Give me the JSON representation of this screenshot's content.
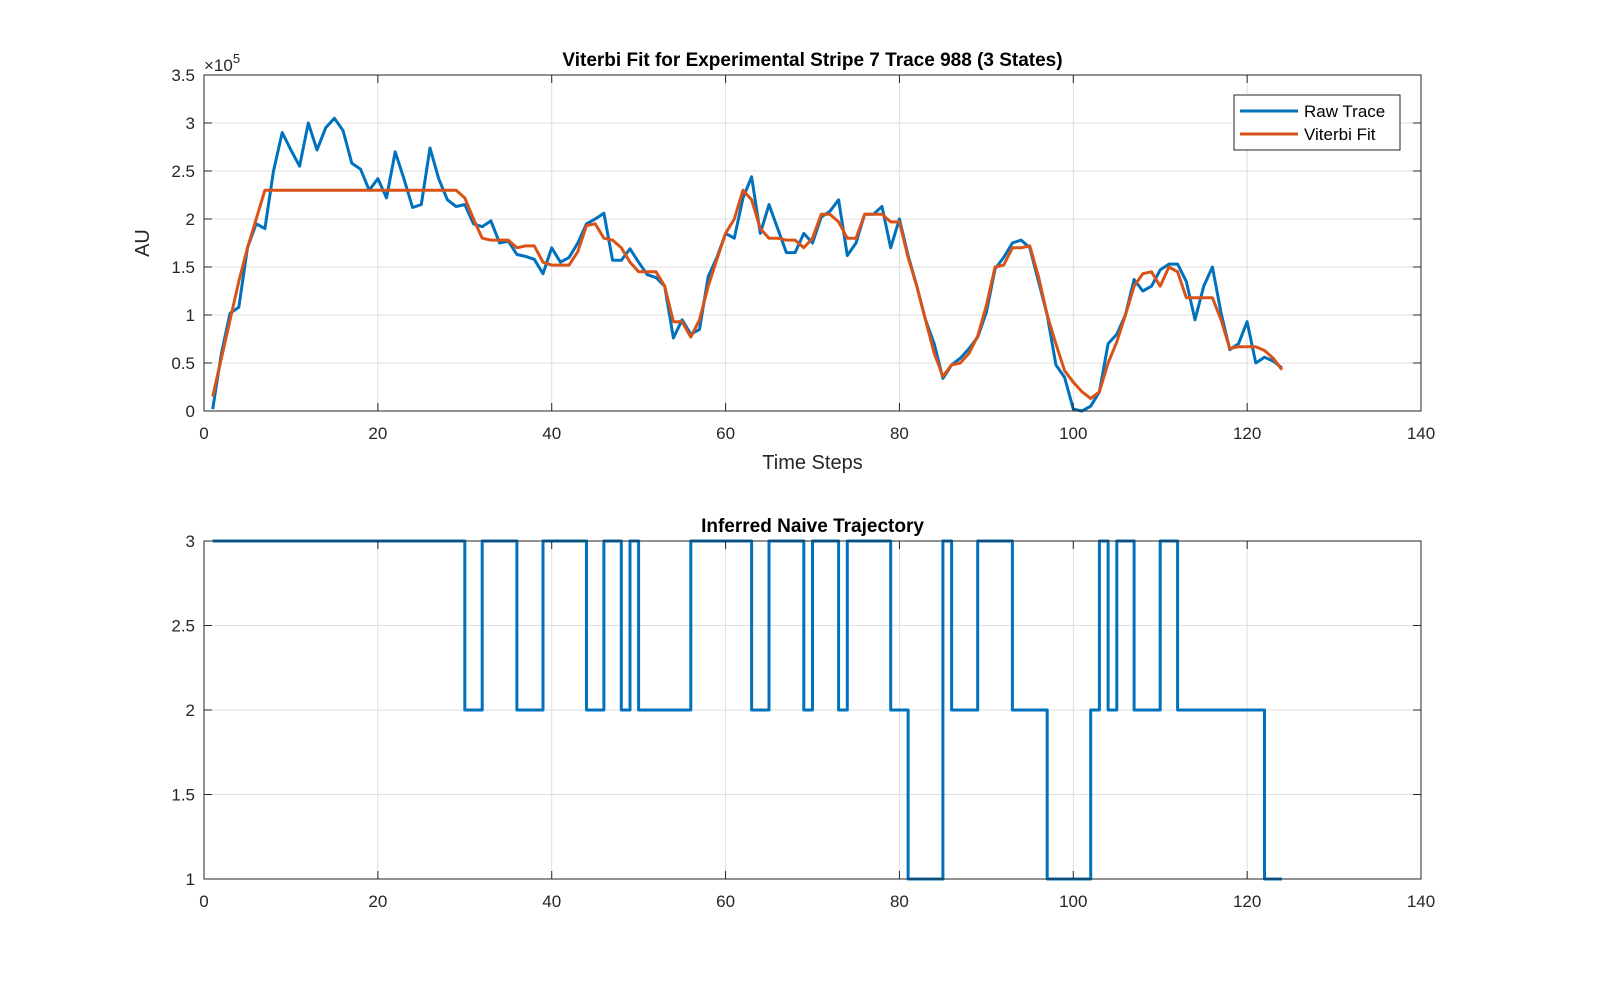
{
  "figure": {
    "background": "#ffffff"
  },
  "colors": {
    "series1": "#0072BD",
    "series2": "#D95319",
    "grid": "#DFDFDF",
    "axis": "#262626"
  },
  "chart_data": [
    {
      "type": "line",
      "title": "Viterbi Fit for Experimental Stripe 7 Trace 988 (3 States)",
      "xlabel": "Time Steps",
      "ylabel": "AU",
      "exponent_label": "×10",
      "exponent_power": "5",
      "xlim": [
        0,
        140
      ],
      "ylim": [
        0,
        3.5
      ],
      "y_scale_factor": 100000,
      "xticks": [
        0,
        20,
        40,
        60,
        80,
        100,
        120,
        140
      ],
      "xtick_labels": [
        "0",
        "20",
        "40",
        "60",
        "80",
        "100",
        "120",
        "140"
      ],
      "yticks": [
        0,
        0.5,
        1,
        1.5,
        2,
        2.5,
        3,
        3.5
      ],
      "ytick_labels": [
        "0",
        "0.5",
        "1",
        "1.5",
        "2",
        "2.5",
        "3",
        "3.5"
      ],
      "grid": true,
      "legend_position": "top-right",
      "series": [
        {
          "name": "Raw Trace",
          "color": "#0072BD",
          "x": [
            1,
            2,
            3,
            4,
            5,
            6,
            7,
            8,
            9,
            10,
            11,
            12,
            13,
            14,
            15,
            16,
            17,
            18,
            19,
            20,
            21,
            22,
            23,
            24,
            25,
            26,
            27,
            28,
            29,
            30,
            31,
            32,
            33,
            34,
            35,
            36,
            37,
            38,
            39,
            40,
            41,
            42,
            43,
            44,
            45,
            46,
            47,
            48,
            49,
            50,
            51,
            52,
            53,
            54,
            55,
            56,
            57,
            58,
            59,
            60,
            61,
            62,
            63,
            64,
            65,
            66,
            67,
            68,
            69,
            70,
            71,
            72,
            73,
            74,
            75,
            76,
            77,
            78,
            79,
            80,
            81,
            82,
            83,
            84,
            85,
            86,
            87,
            88,
            89,
            90,
            91,
            92,
            93,
            94,
            95,
            96,
            97,
            98,
            99,
            100,
            101,
            102,
            103,
            104,
            105,
            106,
            107,
            108,
            109,
            110,
            111,
            112,
            113,
            114,
            115,
            116,
            117,
            118,
            119,
            120,
            121,
            122,
            123,
            124
          ],
          "values": [
            0.02,
            0.6,
            1.02,
            1.08,
            1.7,
            1.95,
            1.9,
            2.5,
            2.9,
            2.72,
            2.55,
            3.0,
            2.72,
            2.95,
            3.05,
            2.92,
            2.58,
            2.52,
            2.3,
            2.42,
            2.22,
            2.7,
            2.42,
            2.12,
            2.15,
            2.74,
            2.42,
            2.2,
            2.13,
            2.15,
            1.95,
            1.92,
            1.98,
            1.75,
            1.77,
            1.63,
            1.61,
            1.58,
            1.43,
            1.7,
            1.55,
            1.6,
            1.75,
            1.95,
            2.0,
            2.06,
            1.57,
            1.57,
            1.69,
            1.55,
            1.42,
            1.39,
            1.3,
            0.76,
            0.95,
            0.8,
            0.85,
            1.4,
            1.6,
            1.85,
            1.8,
            2.22,
            2.44,
            1.85,
            2.15,
            1.9,
            1.65,
            1.65,
            1.85,
            1.75,
            2.02,
            2.08,
            2.2,
            1.62,
            1.75,
            2.05,
            2.05,
            2.13,
            1.7,
            2.0,
            1.62,
            1.3,
            0.95,
            0.7,
            0.34,
            0.48,
            0.55,
            0.65,
            0.77,
            1.03,
            1.48,
            1.6,
            1.75,
            1.78,
            1.7,
            1.35,
            1.0,
            0.48,
            0.35,
            0.02,
            0.0,
            0.05,
            0.2,
            0.7,
            0.8,
            1.0,
            1.37,
            1.25,
            1.3,
            1.47,
            1.53,
            1.53,
            1.35,
            0.95,
            1.3,
            1.5,
            1.02,
            0.64,
            0.7,
            0.93,
            0.5,
            0.56,
            0.52,
            0.45
          ]
        },
        {
          "name": "Viterbi Fit",
          "color": "#D95319",
          "x": [
            1,
            2,
            3,
            4,
            5,
            6,
            7,
            8,
            9,
            10,
            11,
            12,
            13,
            14,
            15,
            16,
            17,
            18,
            19,
            20,
            21,
            22,
            23,
            24,
            25,
            26,
            27,
            28,
            29,
            30,
            31,
            32,
            33,
            34,
            35,
            36,
            37,
            38,
            39,
            40,
            41,
            42,
            43,
            44,
            45,
            46,
            47,
            48,
            49,
            50,
            51,
            52,
            53,
            54,
            55,
            56,
            57,
            58,
            59,
            60,
            61,
            62,
            63,
            64,
            65,
            66,
            67,
            68,
            69,
            70,
            71,
            72,
            73,
            74,
            75,
            76,
            77,
            78,
            79,
            80,
            81,
            82,
            83,
            84,
            85,
            86,
            87,
            88,
            89,
            90,
            91,
            92,
            93,
            94,
            95,
            96,
            97,
            98,
            99,
            100,
            101,
            102,
            103,
            104,
            105,
            106,
            107,
            108,
            109,
            110,
            111,
            112,
            113,
            114,
            115,
            116,
            117,
            118,
            119,
            120,
            121,
            122,
            123,
            124
          ],
          "values": [
            0.15,
            0.55,
            0.95,
            1.35,
            1.7,
            2.0,
            2.3,
            2.3,
            2.3,
            2.3,
            2.3,
            2.3,
            2.3,
            2.3,
            2.3,
            2.3,
            2.3,
            2.3,
            2.3,
            2.3,
            2.3,
            2.3,
            2.3,
            2.3,
            2.3,
            2.3,
            2.3,
            2.3,
            2.3,
            2.22,
            2.0,
            1.8,
            1.78,
            1.78,
            1.78,
            1.7,
            1.72,
            1.72,
            1.55,
            1.52,
            1.52,
            1.52,
            1.66,
            1.93,
            1.95,
            1.8,
            1.78,
            1.7,
            1.55,
            1.45,
            1.45,
            1.45,
            1.3,
            0.93,
            0.93,
            0.77,
            0.95,
            1.3,
            1.58,
            1.85,
            2.0,
            2.3,
            2.2,
            1.9,
            1.8,
            1.8,
            1.78,
            1.78,
            1.7,
            1.8,
            2.05,
            2.05,
            1.97,
            1.8,
            1.8,
            2.05,
            2.05,
            2.05,
            1.97,
            1.97,
            1.6,
            1.3,
            0.95,
            0.6,
            0.36,
            0.48,
            0.5,
            0.6,
            0.78,
            1.1,
            1.5,
            1.52,
            1.7,
            1.7,
            1.72,
            1.4,
            1.0,
            0.7,
            0.42,
            0.3,
            0.2,
            0.13,
            0.2,
            0.5,
            0.72,
            1.0,
            1.3,
            1.43,
            1.45,
            1.3,
            1.5,
            1.45,
            1.18,
            1.18,
            1.18,
            1.18,
            0.95,
            0.65,
            0.67,
            0.67,
            0.67,
            0.63,
            0.55,
            0.43
          ]
        }
      ]
    },
    {
      "type": "line",
      "title": "Inferred Naive Trajectory",
      "xlabel": "",
      "ylabel": "",
      "xlim": [
        0,
        140
      ],
      "ylim": [
        1,
        3
      ],
      "xticks": [
        0,
        20,
        40,
        60,
        80,
        100,
        120,
        140
      ],
      "xtick_labels": [
        "0",
        "20",
        "40",
        "60",
        "80",
        "100",
        "120",
        "140"
      ],
      "yticks": [
        1,
        1.5,
        2,
        2.5,
        3
      ],
      "ytick_labels": [
        "1",
        "1.5",
        "2",
        "2.5",
        "3"
      ],
      "grid": true,
      "step": true,
      "series": [
        {
          "color": "#0072BD",
          "x": [
            1,
            30,
            32,
            36,
            39,
            44,
            46,
            48,
            49,
            50,
            56,
            63,
            65,
            69,
            70,
            73,
            74,
            79,
            81,
            85,
            86,
            89,
            93,
            97,
            102,
            103,
            104,
            105,
            107,
            110,
            112,
            122,
            124
          ],
          "values": [
            3,
            2,
            3,
            2,
            3,
            2,
            3,
            2,
            3,
            2,
            3,
            2,
            3,
            2,
            3,
            2,
            3,
            2,
            1,
            3,
            2,
            3,
            2,
            1,
            2,
            3,
            2,
            3,
            2,
            3,
            2,
            1,
            1
          ]
        }
      ]
    }
  ]
}
